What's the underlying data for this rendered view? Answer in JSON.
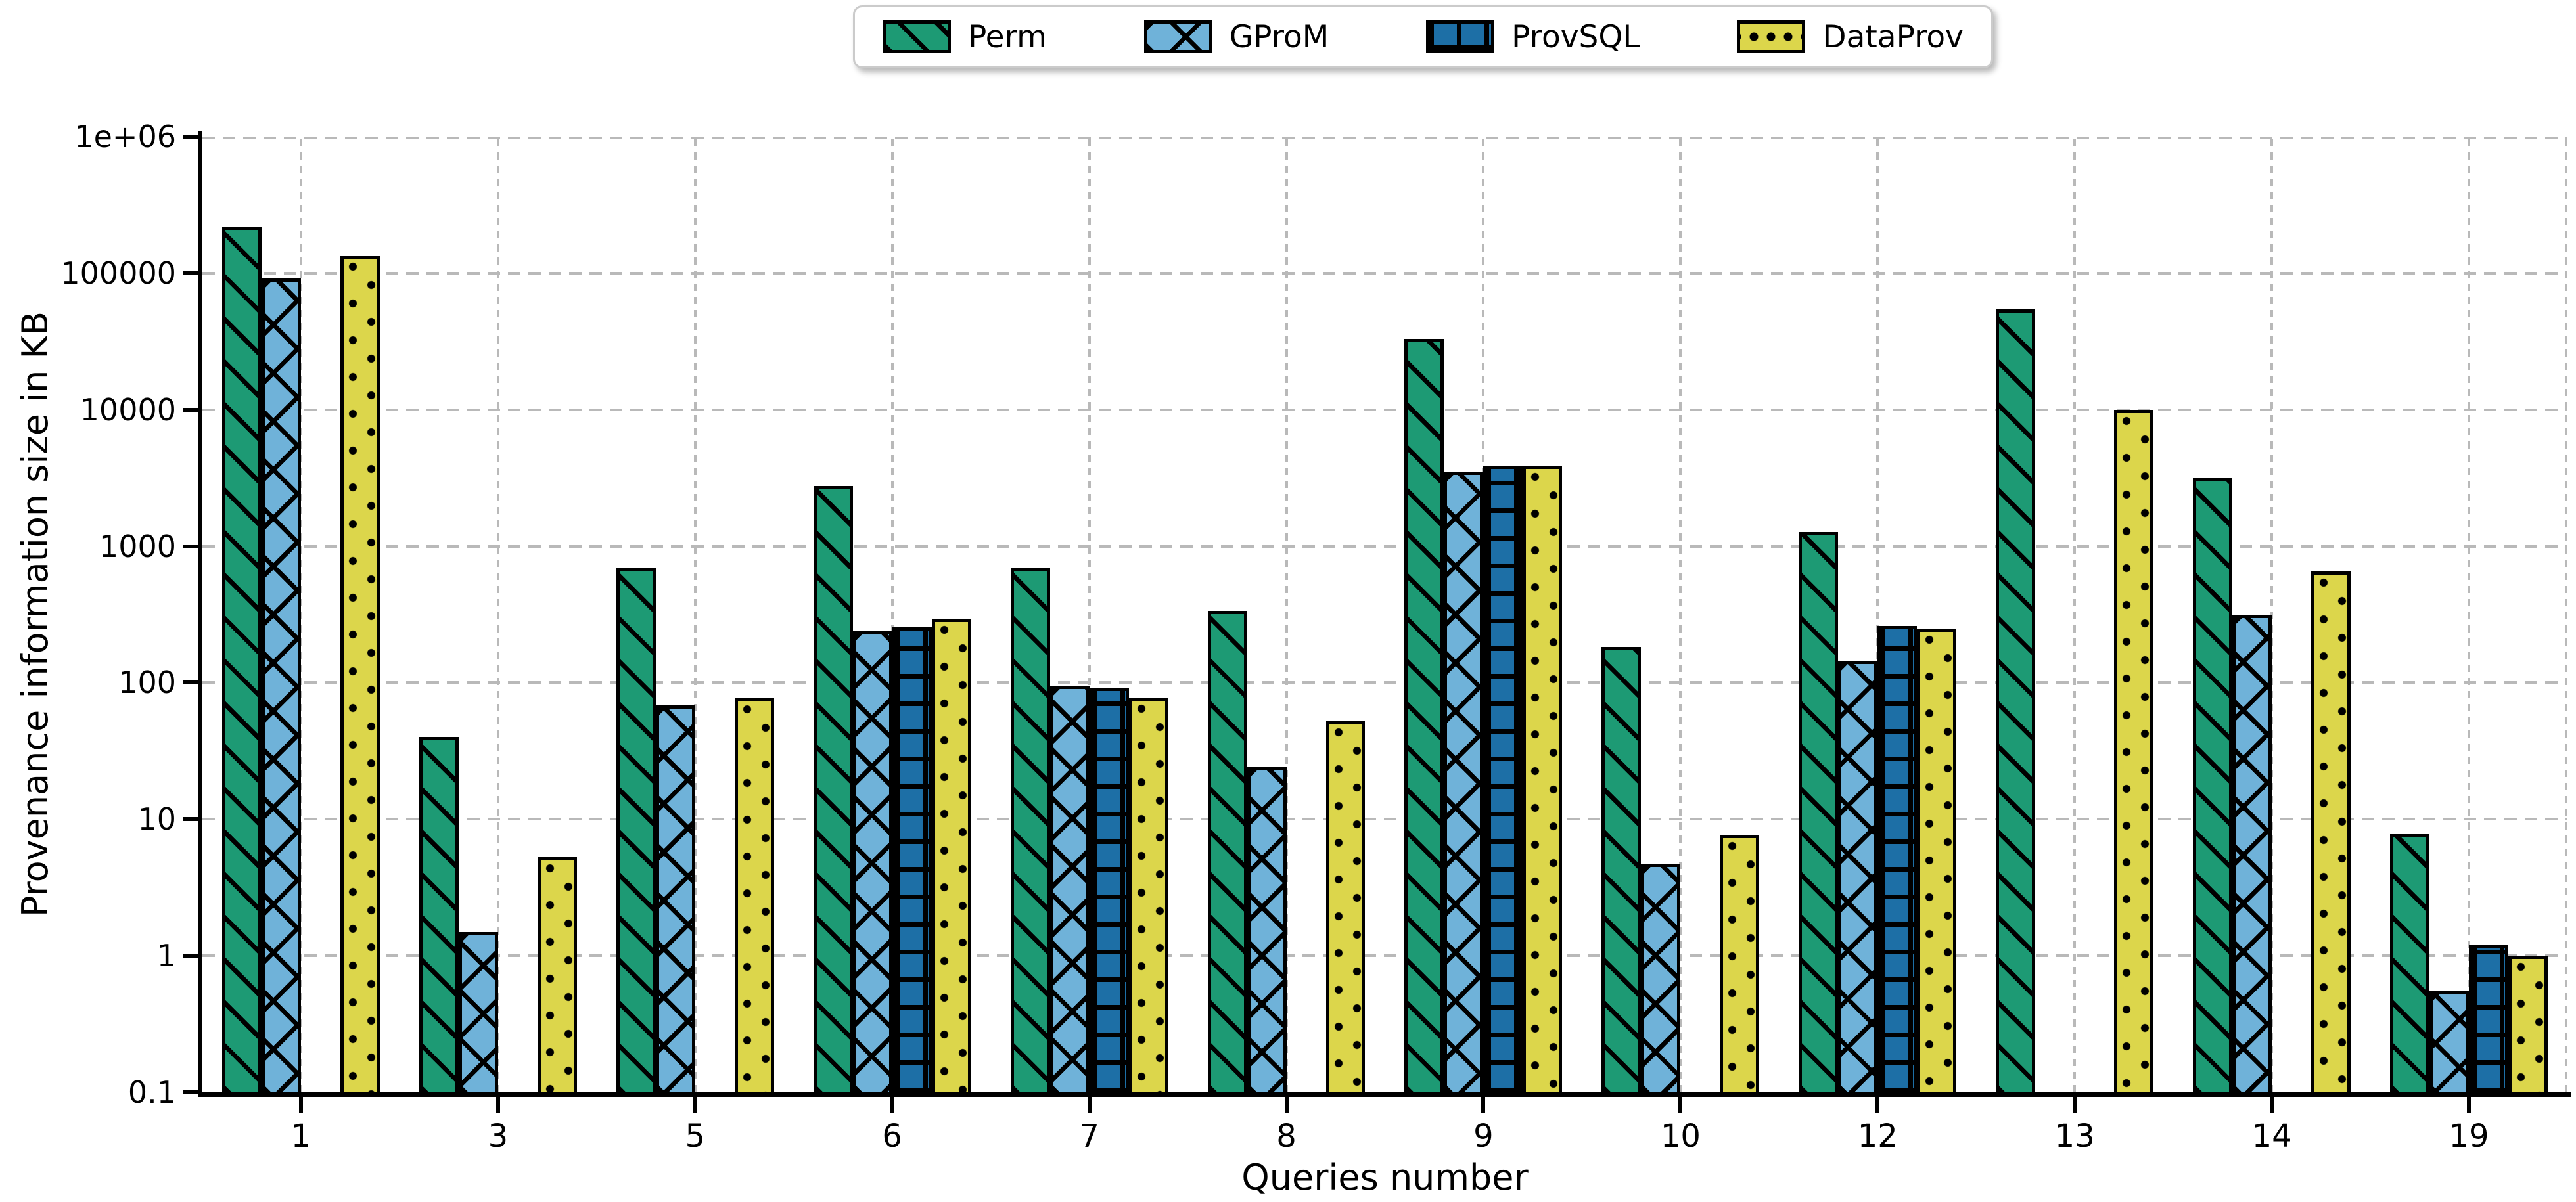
{
  "chart_data": {
    "type": "bar",
    "title": "",
    "xlabel": "Queries number",
    "ylabel": "Provenance information size in KB",
    "y_scale": "log",
    "ylim": [
      0.1,
      1000000
    ],
    "y_ticks": [
      "1e+06",
      "100000",
      "10000",
      "1000",
      "100",
      "10",
      "1",
      "0.1"
    ],
    "y_tick_values": [
      1000000,
      100000,
      10000,
      1000,
      100,
      10,
      1,
      0.1
    ],
    "categories": [
      "1",
      "3",
      "5",
      "6",
      "7",
      "8",
      "9",
      "10",
      "12",
      "13",
      "14",
      "19"
    ],
    "grid": {
      "dashed": true,
      "color": "#b9b9b9",
      "horizontal": true,
      "vertical": true
    },
    "legend_position": "top-center",
    "bar_group_width_fraction": 0.8,
    "series": [
      {
        "name": "Perm",
        "color": "#1d9a74",
        "hatch": "backslash",
        "values": [
          220000,
          40,
          690,
          2750,
          690,
          335,
          33000,
          182,
          1270,
          54000,
          3200,
          7.9
        ]
      },
      {
        "name": "GProM",
        "color": "#6fb2d9",
        "hatch": "cross-diagonal",
        "values": [
          91000,
          1.5,
          68,
          240,
          95,
          24,
          3500,
          4.7,
          145,
          null,
          315,
          0.55
        ]
      },
      {
        "name": "ProvSQL",
        "color": "#1d6fa6",
        "hatch": "grid",
        "values": [
          null,
          null,
          null,
          255,
          92,
          null,
          3900,
          null,
          260,
          null,
          null,
          1.2
        ]
      },
      {
        "name": "DataProv",
        "color": "#dcd64b",
        "hatch": "dots",
        "values": [
          135000,
          5.3,
          77,
          295,
          78,
          52,
          3900,
          7.7,
          250,
          10000,
          650,
          1.0
        ]
      }
    ]
  }
}
